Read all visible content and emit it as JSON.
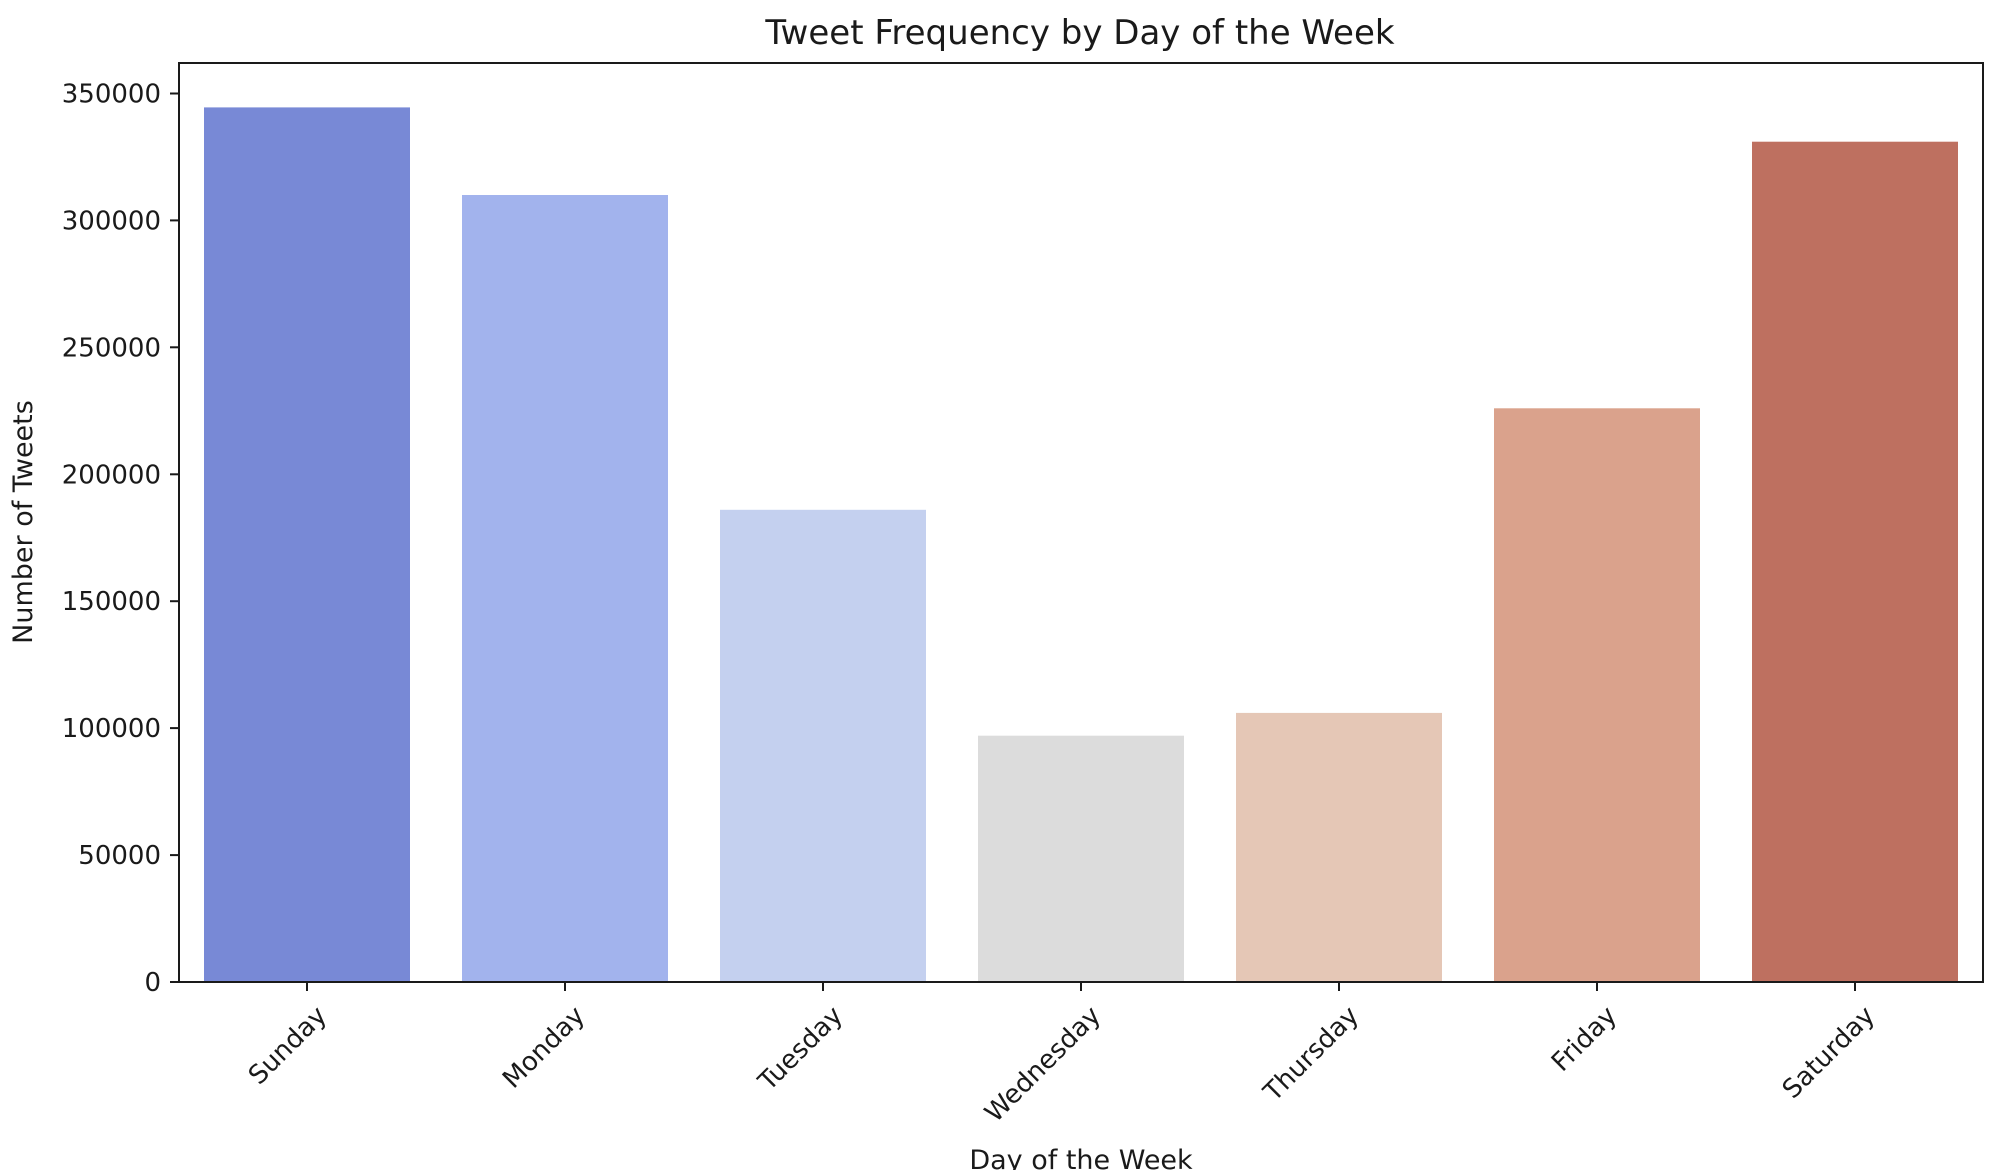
{
  "chart_data": {
    "type": "bar",
    "title": "Tweet Frequency by Day of the Week",
    "xlabel": "Day of the Week",
    "ylabel": "Number of Tweets",
    "categories": [
      "Sunday",
      "Monday",
      "Tuesday",
      "Wednesday",
      "Thursday",
      "Friday",
      "Saturday"
    ],
    "values": [
      344500,
      310000,
      186000,
      97000,
      106000,
      226000,
      331000
    ],
    "colors": [
      "#7889d6",
      "#a2b3ed",
      "#c4d0ef",
      "#dcdcdc",
      "#e5c7b6",
      "#daa28c",
      "#be7060"
    ],
    "ylim": [
      0,
      362000
    ],
    "yticks": [
      0,
      50000,
      100000,
      150000,
      200000,
      250000,
      300000,
      350000
    ],
    "ytick_labels": [
      "0",
      "50000",
      "100000",
      "150000",
      "200000",
      "250000",
      "300000",
      "350000"
    ],
    "grid": false,
    "legend": "none"
  }
}
